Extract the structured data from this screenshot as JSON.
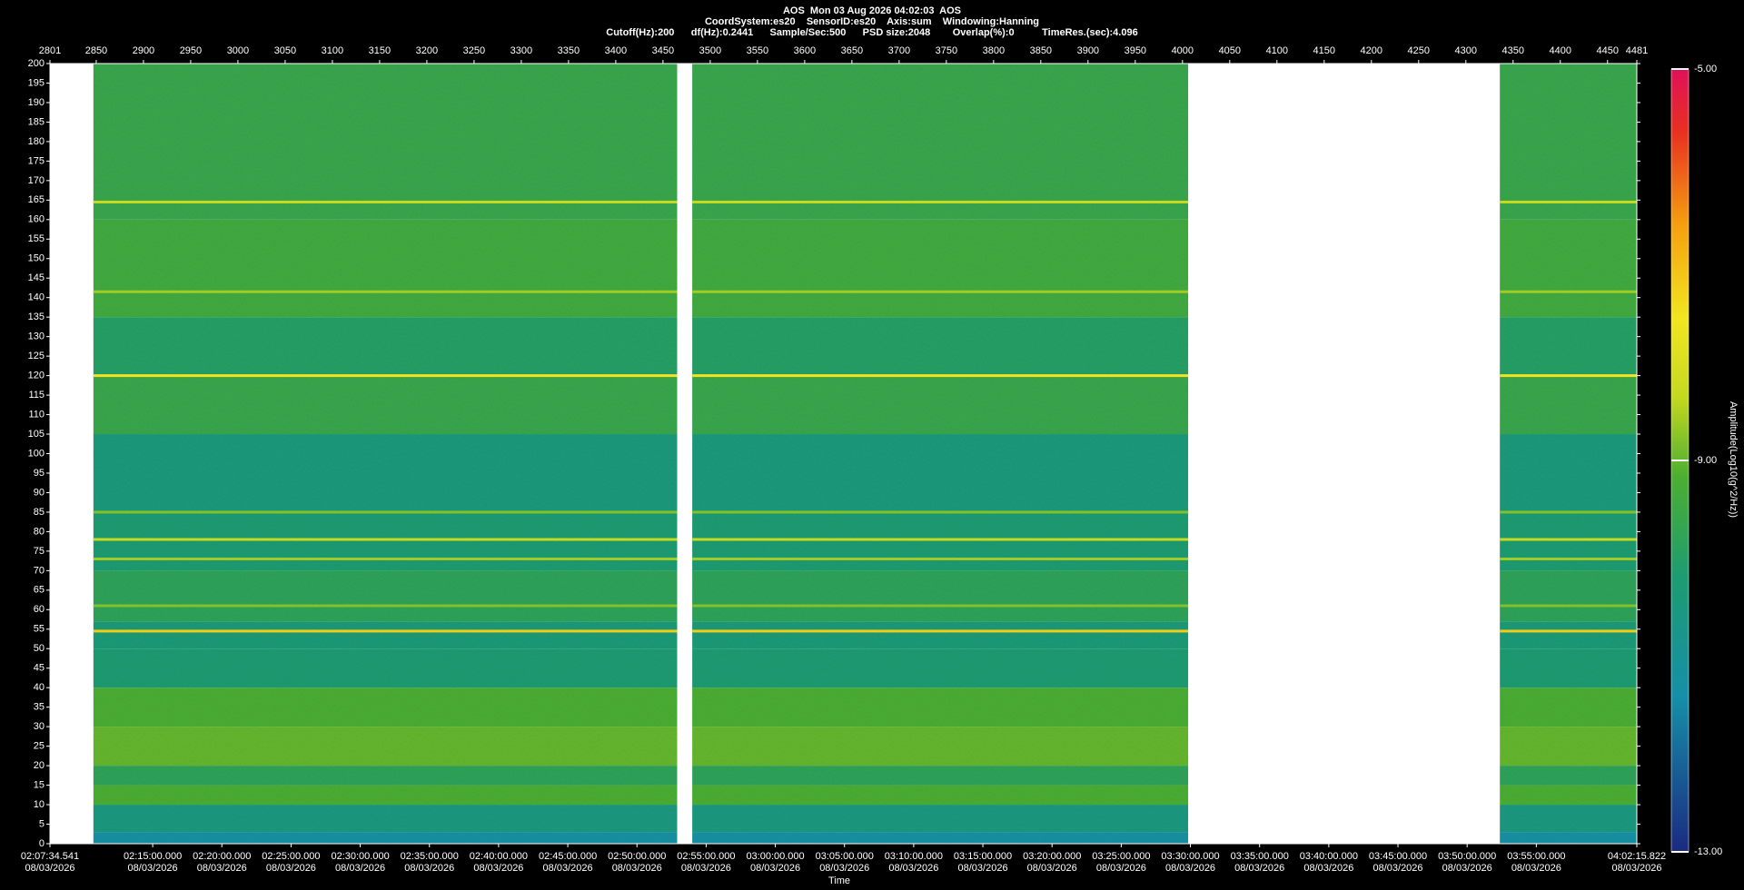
{
  "chart_data": {
    "type": "spectrogram",
    "title_lines": [
      "AOS  Mon 03 Aug 2026 04:02:03  AOS",
      "CoordSystem:es20    SensorID:es20    Axis:sum    Windowing:Hanning",
      "Cutoff(Hz):200      df(Hz):0.2441      Sample/Sec:500      PSD size:2048        Overlap(%):0          TimeRes.(sec):4.096"
    ],
    "xlabel": "Time",
    "colorbar_label": "Amplitude(Log10(g^2/Hz))",
    "x2lim": [
      2801,
      4481
    ],
    "x2ticks": [
      2801,
      2850,
      2900,
      2950,
      3000,
      3050,
      3100,
      3150,
      3200,
      3250,
      3300,
      3350,
      3400,
      3450,
      3500,
      3550,
      3600,
      3650,
      3700,
      3750,
      3800,
      3850,
      3900,
      3950,
      4000,
      4050,
      4100,
      4150,
      4200,
      4250,
      4300,
      4350,
      4400,
      4450,
      4481
    ],
    "time_range": [
      "02:07:34.541",
      "04:02:15.822"
    ],
    "time_ticks": [
      {
        "time": "02:07:34.541",
        "date": "08/03/2026"
      },
      {
        "time": "02:15:00.000",
        "date": "08/03/2026"
      },
      {
        "time": "02:20:00.000",
        "date": "08/03/2026"
      },
      {
        "time": "02:25:00.000",
        "date": "08/03/2026"
      },
      {
        "time": "02:30:00.000",
        "date": "08/03/2026"
      },
      {
        "time": "02:35:00.000",
        "date": "08/03/2026"
      },
      {
        "time": "02:40:00.000",
        "date": "08/03/2026"
      },
      {
        "time": "02:45:00.000",
        "date": "08/03/2026"
      },
      {
        "time": "02:50:00.000",
        "date": "08/03/2026"
      },
      {
        "time": "02:55:00.000",
        "date": "08/03/2026"
      },
      {
        "time": "03:00:00.000",
        "date": "08/03/2026"
      },
      {
        "time": "03:05:00.000",
        "date": "08/03/2026"
      },
      {
        "time": "03:10:00.000",
        "date": "08/03/2026"
      },
      {
        "time": "03:15:00.000",
        "date": "08/03/2026"
      },
      {
        "time": "03:20:00.000",
        "date": "08/03/2026"
      },
      {
        "time": "03:25:00.000",
        "date": "08/03/2026"
      },
      {
        "time": "03:30:00.000",
        "date": "08/03/2026"
      },
      {
        "time": "03:35:00.000",
        "date": "08/03/2026"
      },
      {
        "time": "03:40:00.000",
        "date": "08/03/2026"
      },
      {
        "time": "03:45:00.000",
        "date": "08/03/2026"
      },
      {
        "time": "03:50:00.000",
        "date": "08/03/2026"
      },
      {
        "time": "03:55:00.000",
        "date": "08/03/2026"
      },
      {
        "time": "04:02:15.822",
        "date": "08/03/2026"
      }
    ],
    "ylim": [
      0,
      200
    ],
    "yticks": [
      0,
      5,
      10,
      15,
      20,
      25,
      30,
      35,
      40,
      45,
      50,
      55,
      60,
      65,
      70,
      75,
      80,
      85,
      90,
      95,
      100,
      105,
      110,
      115,
      120,
      125,
      130,
      135,
      140,
      145,
      150,
      155,
      160,
      165,
      170,
      175,
      180,
      185,
      190,
      195,
      200
    ],
    "zlim": [
      -13,
      -5
    ],
    "zticks": [
      {
        "value": -5,
        "label": "-5.00"
      },
      {
        "value": -9,
        "label": "-9.00"
      },
      {
        "value": -13,
        "label": "-13.00"
      }
    ],
    "segments": [
      [
        2847,
        3465
      ],
      [
        3481,
        4006
      ],
      [
        4336,
        4481
      ]
    ],
    "band_edges": [
      0,
      3,
      10,
      15,
      20,
      30,
      40,
      50,
      57,
      70,
      85,
      105,
      120,
      135,
      160,
      200
    ],
    "band_values": [
      -11.3,
      -10.5,
      -9.2,
      -9.8,
      -9.0,
      -9.2,
      -10.2,
      -10.3,
      -9.8,
      -10.2,
      -10.4,
      -9.6,
      -10.0,
      -9.4,
      -9.6
    ],
    "lines": {
      "freqs": [
        164.5,
        141.5,
        120,
        85,
        78,
        73,
        61,
        54.5
      ],
      "values": [
        -8.3,
        -8.6,
        -7.5,
        -8.8,
        -8.3,
        -8.6,
        -8.8,
        -7.2
      ]
    }
  }
}
